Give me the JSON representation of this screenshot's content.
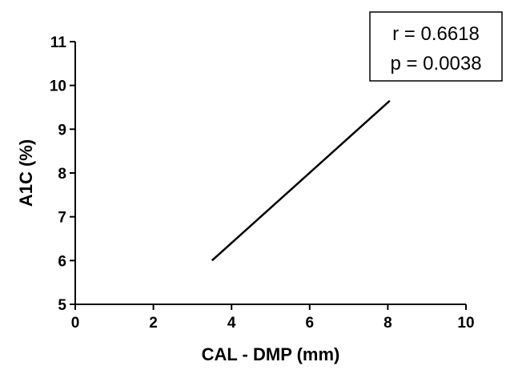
{
  "chart_data": {
    "type": "line",
    "title": "",
    "xlabel": "CAL - DMP (mm)",
    "ylabel": "A1C (%)",
    "xlim": [
      0,
      10
    ],
    "ylim": [
      5,
      11
    ],
    "x_ticks": [
      0,
      2,
      4,
      6,
      8,
      10
    ],
    "y_ticks": [
      5,
      6,
      7,
      8,
      9,
      10,
      11
    ],
    "grid": false,
    "series": [
      {
        "x": [
          3.5,
          8.05
        ],
        "y": [
          6.0,
          9.65
        ],
        "color": "#000000"
      }
    ],
    "annotations": {
      "r_text": "r = 0.6618",
      "p_text": "p = 0.0038",
      "placement": "top-right"
    }
  }
}
